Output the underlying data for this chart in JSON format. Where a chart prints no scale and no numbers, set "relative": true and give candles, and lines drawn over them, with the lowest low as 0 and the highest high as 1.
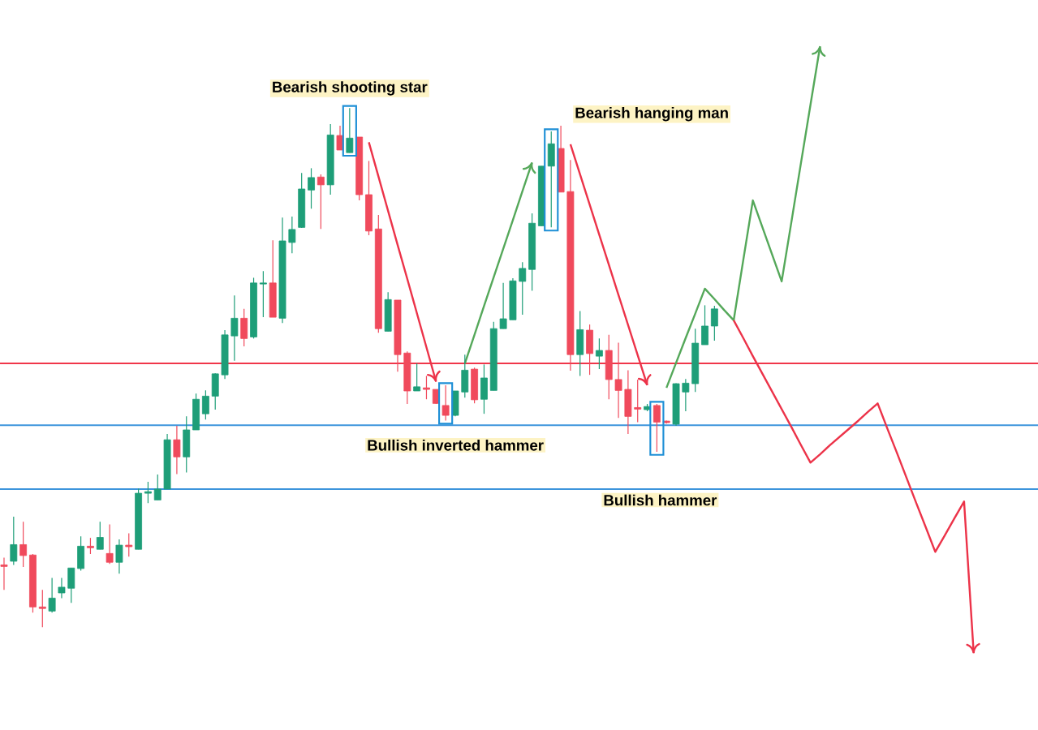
{
  "chart_data": {
    "type": "candlestick",
    "relative": true,
    "categories": [
      null,
      null,
      null,
      null,
      null,
      null,
      null,
      null,
      null,
      null,
      null,
      null,
      null,
      null,
      null,
      null,
      null,
      null,
      null,
      null,
      null,
      null,
      null,
      null,
      null,
      null,
      null,
      null,
      null,
      null,
      null,
      null,
      null,
      null,
      null,
      null,
      null,
      null,
      null,
      null,
      null,
      null,
      null,
      null,
      null,
      null,
      null,
      null,
      null,
      null,
      null,
      null,
      null,
      null,
      null,
      null,
      null,
      null,
      null,
      null,
      null,
      null,
      null,
      null,
      null,
      null,
      null,
      null,
      null,
      null,
      null,
      null,
      null,
      null,
      null,
      null,
      null,
      null,
      null,
      null,
      null,
      null,
      null,
      null,
      null,
      null,
      null,
      null,
      null,
      null,
      null,
      null,
      null,
      null,
      null,
      null,
      null,
      null,
      null,
      null,
      null,
      null
    ],
    "ohlc": [
      [
        0.12,
        0.134,
        0.072,
        0.117
      ],
      [
        0.127,
        0.213,
        0.12,
        0.159
      ],
      [
        0.159,
        0.203,
        0.116,
        0.138
      ],
      [
        0.139,
        0.141,
        0.028,
        0.039
      ],
      [
        0.039,
        0.072,
        0,
        0.036
      ],
      [
        0.031,
        0.095,
        0.028,
        0.056
      ],
      [
        0.066,
        0.095,
        0.056,
        0.077
      ],
      [
        0.075,
        0.114,
        0.047,
        0.114
      ],
      [
        0.113,
        0.175,
        0.109,
        0.156
      ],
      [
        0.156,
        0.172,
        0.141,
        0.153
      ],
      [
        0.15,
        0.203,
        0.15,
        0.173
      ],
      [
        0.142,
        0.198,
        0.122,
        0.125
      ],
      [
        0.125,
        0.169,
        0.103,
        0.158
      ],
      [
        0.158,
        0.181,
        0.136,
        0.155
      ],
      [
        0.15,
        0.267,
        0.15,
        0.258
      ],
      [
        0.258,
        0.28,
        0.239,
        0.261
      ],
      [
        0.245,
        0.294,
        0.245,
        0.266
      ],
      [
        0.266,
        0.372,
        0.266,
        0.361
      ],
      [
        0.361,
        0.388,
        0.295,
        0.328
      ],
      [
        0.328,
        0.406,
        0.298,
        0.38
      ],
      [
        0.38,
        0.45,
        0.38,
        0.439
      ],
      [
        0.411,
        0.456,
        0.4,
        0.445
      ],
      [
        0.445,
        0.489,
        0.419,
        0.488
      ],
      [
        0.486,
        0.572,
        0.478,
        0.563
      ],
      [
        0.561,
        0.639,
        0.513,
        0.595
      ],
      [
        0.595,
        0.613,
        0.541,
        0.556
      ],
      [
        0.559,
        0.673,
        0.556,
        0.663
      ],
      [
        0.661,
        0.686,
        0.597,
        0.663
      ],
      [
        0.663,
        0.745,
        0.597,
        0.597
      ],
      [
        0.595,
        0.789,
        0.586,
        0.744
      ],
      [
        0.741,
        0.791,
        0.72,
        0.766
      ],
      [
        0.77,
        0.875,
        0.769,
        0.844
      ],
      [
        0.842,
        0.884,
        0.806,
        0.866
      ],
      [
        0.867,
        0.872,
        0.767,
        0.852
      ],
      [
        0.852,
        0.969,
        0.833,
        0.948
      ],
      [
        0.947,
        0.966,
        0.919,
        0.919
      ],
      [
        0.914,
        1,
        0.914,
        0.942
      ],
      [
        0.944,
        0.944,
        0.822,
        0.833
      ],
      [
        0.833,
        0.898,
        0.755,
        0.763
      ],
      [
        0.767,
        0.794,
        0.567,
        0.575
      ],
      [
        0.57,
        0.645,
        0.57,
        0.631
      ],
      [
        0.63,
        0.63,
        0.492,
        0.525
      ],
      [
        0.528,
        0.531,
        0.43,
        0.455
      ],
      [
        0.455,
        0.508,
        0.455,
        0.463
      ],
      [
        0.461,
        0.484,
        0.439,
        0.458
      ],
      [
        0.458,
        0.458,
        0.43,
        0.431
      ],
      [
        0.427,
        0.466,
        0.398,
        0.408
      ],
      [
        0.408,
        0.455,
        0.406,
        0.455
      ],
      [
        0.453,
        0.525,
        0.442,
        0.495
      ],
      [
        0.497,
        0.5,
        0.431,
        0.438
      ],
      [
        0.439,
        0.506,
        0.411,
        0.48
      ],
      [
        0.456,
        0.588,
        0.456,
        0.575
      ],
      [
        0.575,
        0.663,
        0.575,
        0.594
      ],
      [
        0.592,
        0.672,
        0.592,
        0.667
      ],
      [
        0.666,
        0.703,
        0.602,
        0.691
      ],
      [
        0.689,
        0.797,
        0.648,
        0.778
      ],
      [
        0.773,
        0.888,
        0.773,
        0.888
      ],
      [
        0.888,
        0.955,
        0.77,
        0.931
      ],
      [
        0.922,
        0.966,
        0.838,
        0.838
      ],
      [
        0.839,
        0.9,
        0.494,
        0.525
      ],
      [
        0.525,
        0.609,
        0.484,
        0.573
      ],
      [
        0.572,
        0.583,
        0.486,
        0.527
      ],
      [
        0.522,
        0.556,
        0.497,
        0.533
      ],
      [
        0.533,
        0.563,
        0.439,
        0.477
      ],
      [
        0.477,
        0.548,
        0.403,
        0.456
      ],
      [
        0.458,
        0.495,
        0.372,
        0.406
      ],
      [
        0.423,
        0.477,
        0.395,
        0.42
      ],
      [
        0.419,
        0.43,
        0.416,
        0.425
      ],
      [
        0.427,
        0.43,
        0.338,
        0.395
      ],
      [
        0.397,
        0.398,
        0.392,
        0.394
      ],
      [
        0.391,
        0.47,
        0.388,
        0.469
      ],
      [
        0.453,
        0.478,
        0.416,
        0.47
      ],
      [
        0.469,
        0.575,
        0.453,
        0.547
      ],
      [
        0.544,
        0.62,
        0.544,
        0.58
      ],
      [
        0.58,
        0.619,
        0.552,
        0.613
      ],
      null,
      null,
      null,
      null,
      null,
      null,
      null,
      null,
      null,
      null,
      null,
      null,
      null,
      null,
      null,
      null,
      null,
      null,
      null,
      null,
      null,
      null,
      null,
      null,
      null,
      null,
      null
    ],
    "series": [
      {
        "type": "line",
        "color": "#ec3349",
        "values": [
          null,
          null,
          null,
          null,
          null,
          null,
          null,
          null,
          null,
          null,
          null,
          null,
          null,
          null,
          null,
          null,
          null,
          null,
          null,
          null,
          null,
          null,
          null,
          null,
          null,
          null,
          null,
          null,
          null,
          null,
          null,
          null,
          null,
          null,
          null,
          null,
          null,
          null,
          0.934,
          0.868,
          0.802,
          0.736,
          0.671,
          0.605,
          0.539,
          0.473,
          null,
          null,
          null,
          null,
          null,
          null,
          null,
          null,
          null,
          null,
          null,
          null,
          null,
          null,
          null,
          null,
          null,
          null,
          null,
          null,
          null,
          null,
          null,
          null,
          null,
          null,
          null,
          null,
          null,
          null,
          null,
          null,
          null,
          null,
          null,
          null,
          null,
          null,
          null,
          null,
          null,
          null,
          null,
          null,
          null,
          null,
          null,
          null,
          null,
          null,
          null,
          null,
          null,
          null,
          null,
          null
        ]
      },
      {
        "type": "line",
        "color": "#55a85a",
        "values": [
          null,
          null,
          null,
          null,
          null,
          null,
          null,
          null,
          null,
          null,
          null,
          null,
          null,
          null,
          null,
          null,
          null,
          null,
          null,
          null,
          null,
          null,
          null,
          null,
          null,
          null,
          null,
          null,
          null,
          null,
          null,
          null,
          null,
          null,
          null,
          null,
          null,
          null,
          null,
          null,
          null,
          null,
          null,
          null,
          null,
          null,
          null,
          null,
          0.508,
          0.563,
          0.619,
          0.674,
          0.729,
          0.784,
          0.84,
          0.895,
          null,
          null,
          null,
          null,
          null,
          null,
          null,
          null,
          null,
          null,
          null,
          null,
          null,
          null,
          null,
          null,
          null,
          null,
          null,
          null,
          null,
          null,
          null,
          null,
          null,
          null,
          null,
          null,
          null,
          null,
          null,
          null,
          null,
          null,
          null,
          null,
          null,
          null,
          null,
          null,
          null,
          null,
          null,
          null,
          null,
          null
        ]
      },
      {
        "type": "line",
        "color": "#ec3349",
        "values": [
          null,
          null,
          null,
          null,
          null,
          null,
          null,
          null,
          null,
          null,
          null,
          null,
          null,
          null,
          null,
          null,
          null,
          null,
          null,
          null,
          null,
          null,
          null,
          null,
          null,
          null,
          null,
          null,
          null,
          null,
          null,
          null,
          null,
          null,
          null,
          null,
          null,
          null,
          null,
          null,
          null,
          null,
          null,
          null,
          null,
          null,
          null,
          null,
          null,
          null,
          null,
          null,
          null,
          null,
          null,
          null,
          null,
          null,
          null,
          0.93,
          0.872,
          0.814,
          0.756,
          0.698,
          0.64,
          0.582,
          0.524,
          0.466,
          null,
          null,
          null,
          null,
          null,
          null,
          null,
          null,
          null,
          null,
          null,
          null,
          null,
          null,
          null,
          null,
          null,
          null,
          null,
          null,
          null,
          null,
          null,
          null,
          null,
          null,
          null,
          null,
          null,
          null,
          null,
          null,
          null,
          null
        ]
      },
      {
        "type": "line",
        "color": "#55a85a",
        "values": [
          null,
          null,
          null,
          null,
          null,
          null,
          null,
          null,
          null,
          null,
          null,
          null,
          null,
          null,
          null,
          null,
          null,
          null,
          null,
          null,
          null,
          null,
          null,
          null,
          null,
          null,
          null,
          null,
          null,
          null,
          null,
          null,
          null,
          null,
          null,
          null,
          null,
          null,
          null,
          null,
          null,
          null,
          null,
          null,
          null,
          null,
          null,
          null,
          null,
          null,
          null,
          null,
          null,
          null,
          null,
          null,
          null,
          null,
          null,
          null,
          null,
          null,
          null,
          null,
          null,
          null,
          null,
          null,
          null,
          0.461,
          0.509,
          0.557,
          0.604,
          0.652,
          0.632,
          0.611,
          0.591,
          0.707,
          0.822,
          0.77,
          0.718,
          0.666,
          0.779,
          0.893,
          1.006,
          1.119,
          null,
          null,
          null,
          null,
          null,
          null,
          null,
          null,
          null,
          null,
          null,
          null,
          null,
          null,
          null,
          null
        ]
      },
      {
        "type": "line",
        "color": "#ec3349",
        "values": [
          null,
          null,
          null,
          null,
          null,
          null,
          null,
          null,
          null,
          null,
          null,
          null,
          null,
          null,
          null,
          null,
          null,
          null,
          null,
          null,
          null,
          null,
          null,
          null,
          null,
          null,
          null,
          null,
          null,
          null,
          null,
          null,
          null,
          null,
          null,
          null,
          null,
          null,
          null,
          null,
          null,
          null,
          null,
          null,
          null,
          null,
          null,
          null,
          null,
          null,
          null,
          null,
          null,
          null,
          null,
          null,
          null,
          null,
          null,
          null,
          null,
          null,
          null,
          null,
          null,
          null,
          null,
          null,
          null,
          null,
          null,
          null,
          null,
          null,
          null,
          null,
          0.591,
          0.557,
          0.522,
          0.488,
          0.454,
          0.42,
          0.386,
          0.351,
          0.317,
          0.333,
          0.35,
          0.366,
          0.382,
          0.398,
          0.415,
          0.431,
          0.383,
          0.336,
          0.288,
          0.24,
          0.193,
          0.145,
          0.177,
          0.21,
          0.242,
          -0.05
        ]
      }
    ],
    "ref_lines": [
      {
        "axis": "y",
        "value": 0.508,
        "color": "#f0364a"
      },
      {
        "axis": "y",
        "value": 0.389,
        "color": "#3d95dc"
      },
      {
        "axis": "y",
        "value": 0.266,
        "color": "#3d95dc"
      }
    ],
    "annotations": [
      "Bearish shooting star",
      "Bearish hanging man",
      "Bullish inverted hammer",
      "Bullish hammer"
    ]
  }
}
